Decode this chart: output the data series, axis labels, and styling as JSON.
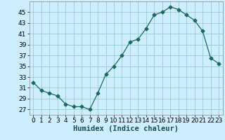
{
  "x": [
    0,
    1,
    2,
    3,
    4,
    5,
    6,
    7,
    8,
    9,
    10,
    11,
    12,
    13,
    14,
    15,
    16,
    17,
    18,
    19,
    20,
    21,
    22,
    23
  ],
  "y": [
    32,
    30.5,
    30,
    29.5,
    28,
    27.5,
    27.5,
    27,
    30,
    33.5,
    35,
    37,
    39.5,
    40,
    42,
    44.5,
    45,
    46,
    45.5,
    44.5,
    43.5,
    41.5,
    36.5,
    35.5
  ],
  "xlabel": "Humidex (Indice chaleur)",
  "xlim": [
    -0.5,
    23.5
  ],
  "ylim": [
    26,
    47
  ],
  "yticks": [
    27,
    29,
    31,
    33,
    35,
    37,
    39,
    41,
    43,
    45
  ],
  "xticks": [
    0,
    1,
    2,
    3,
    4,
    5,
    6,
    7,
    8,
    9,
    10,
    11,
    12,
    13,
    14,
    15,
    16,
    17,
    18,
    19,
    20,
    21,
    22,
    23
  ],
  "line_color": "#1a6b5a",
  "marker": "D",
  "marker_size": 2.5,
  "bg_color": "#cceeff",
  "grid_color": "#99cccc",
  "label_fontsize": 7.5,
  "tick_fontsize": 6.5
}
